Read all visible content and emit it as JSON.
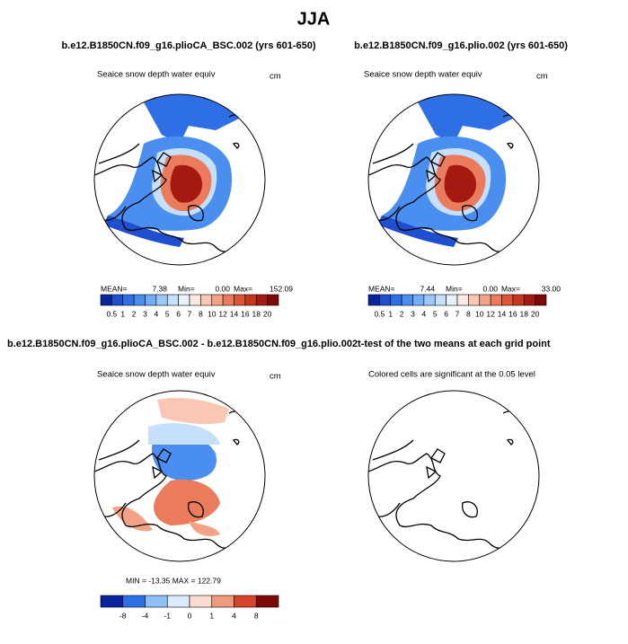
{
  "title": "JJA",
  "panels": [
    {
      "title": "b.e12.B1850CN.f09_g16.plioCA_BSC.002 (yrs 601-650)",
      "subtitle": "Seaice snow depth water equiv",
      "units": "cm",
      "stats": [
        "MEAN=",
        "7.38",
        "Min=",
        "0.00",
        "Max=",
        "152.09"
      ]
    },
    {
      "title": "b.e12.B1850CN.f09_g16.plio.002 (yrs 601-650)",
      "subtitle": "Seaice snow depth water equiv",
      "units": "cm",
      "stats": [
        "MEAN=",
        "7.44",
        "Min=",
        "0.00",
        "Max=",
        "33.00"
      ]
    },
    {
      "title": "b.e12.B1850CN.f09_g16.plioCA_BSC.002 - b.e12.B1850CN.f09_g16.plio.002",
      "subtitle": "Seaice snow depth water equiv",
      "units": "cm",
      "stats": [
        "MIN = -13.35  MAX = 122.79"
      ]
    },
    {
      "title": "t-test of the two means at each grid point",
      "subtitle": "Colored cells are significant at the 0.05 level"
    }
  ],
  "colorbars": [
    {
      "labels": [
        "0.5",
        "1",
        "2",
        "3",
        "4",
        "5",
        "6",
        "7",
        "8",
        "10",
        "12",
        "14",
        "16",
        "18",
        "20"
      ],
      "colors": [
        "#08239c",
        "#1d4fcf",
        "#2f6fe6",
        "#4a8ef0",
        "#72aef5",
        "#9ccaf8",
        "#c6e0fb",
        "#e8f2fd",
        "#fde9e2",
        "#f9c7b3",
        "#f3a285",
        "#ea7b5c",
        "#dc5638",
        "#c7361f",
        "#a51a10",
        "#7d0a06"
      ]
    },
    {
      "labels": [
        "-8",
        "-4",
        "-1",
        "0",
        "1",
        "4",
        "8"
      ],
      "colors": [
        "#08239c",
        "#2f6fe6",
        "#8fbff7",
        "#d9ebfc",
        "#fcdcd0",
        "#f09a7c",
        "#d5452a",
        "#7d0a06"
      ]
    }
  ]
}
